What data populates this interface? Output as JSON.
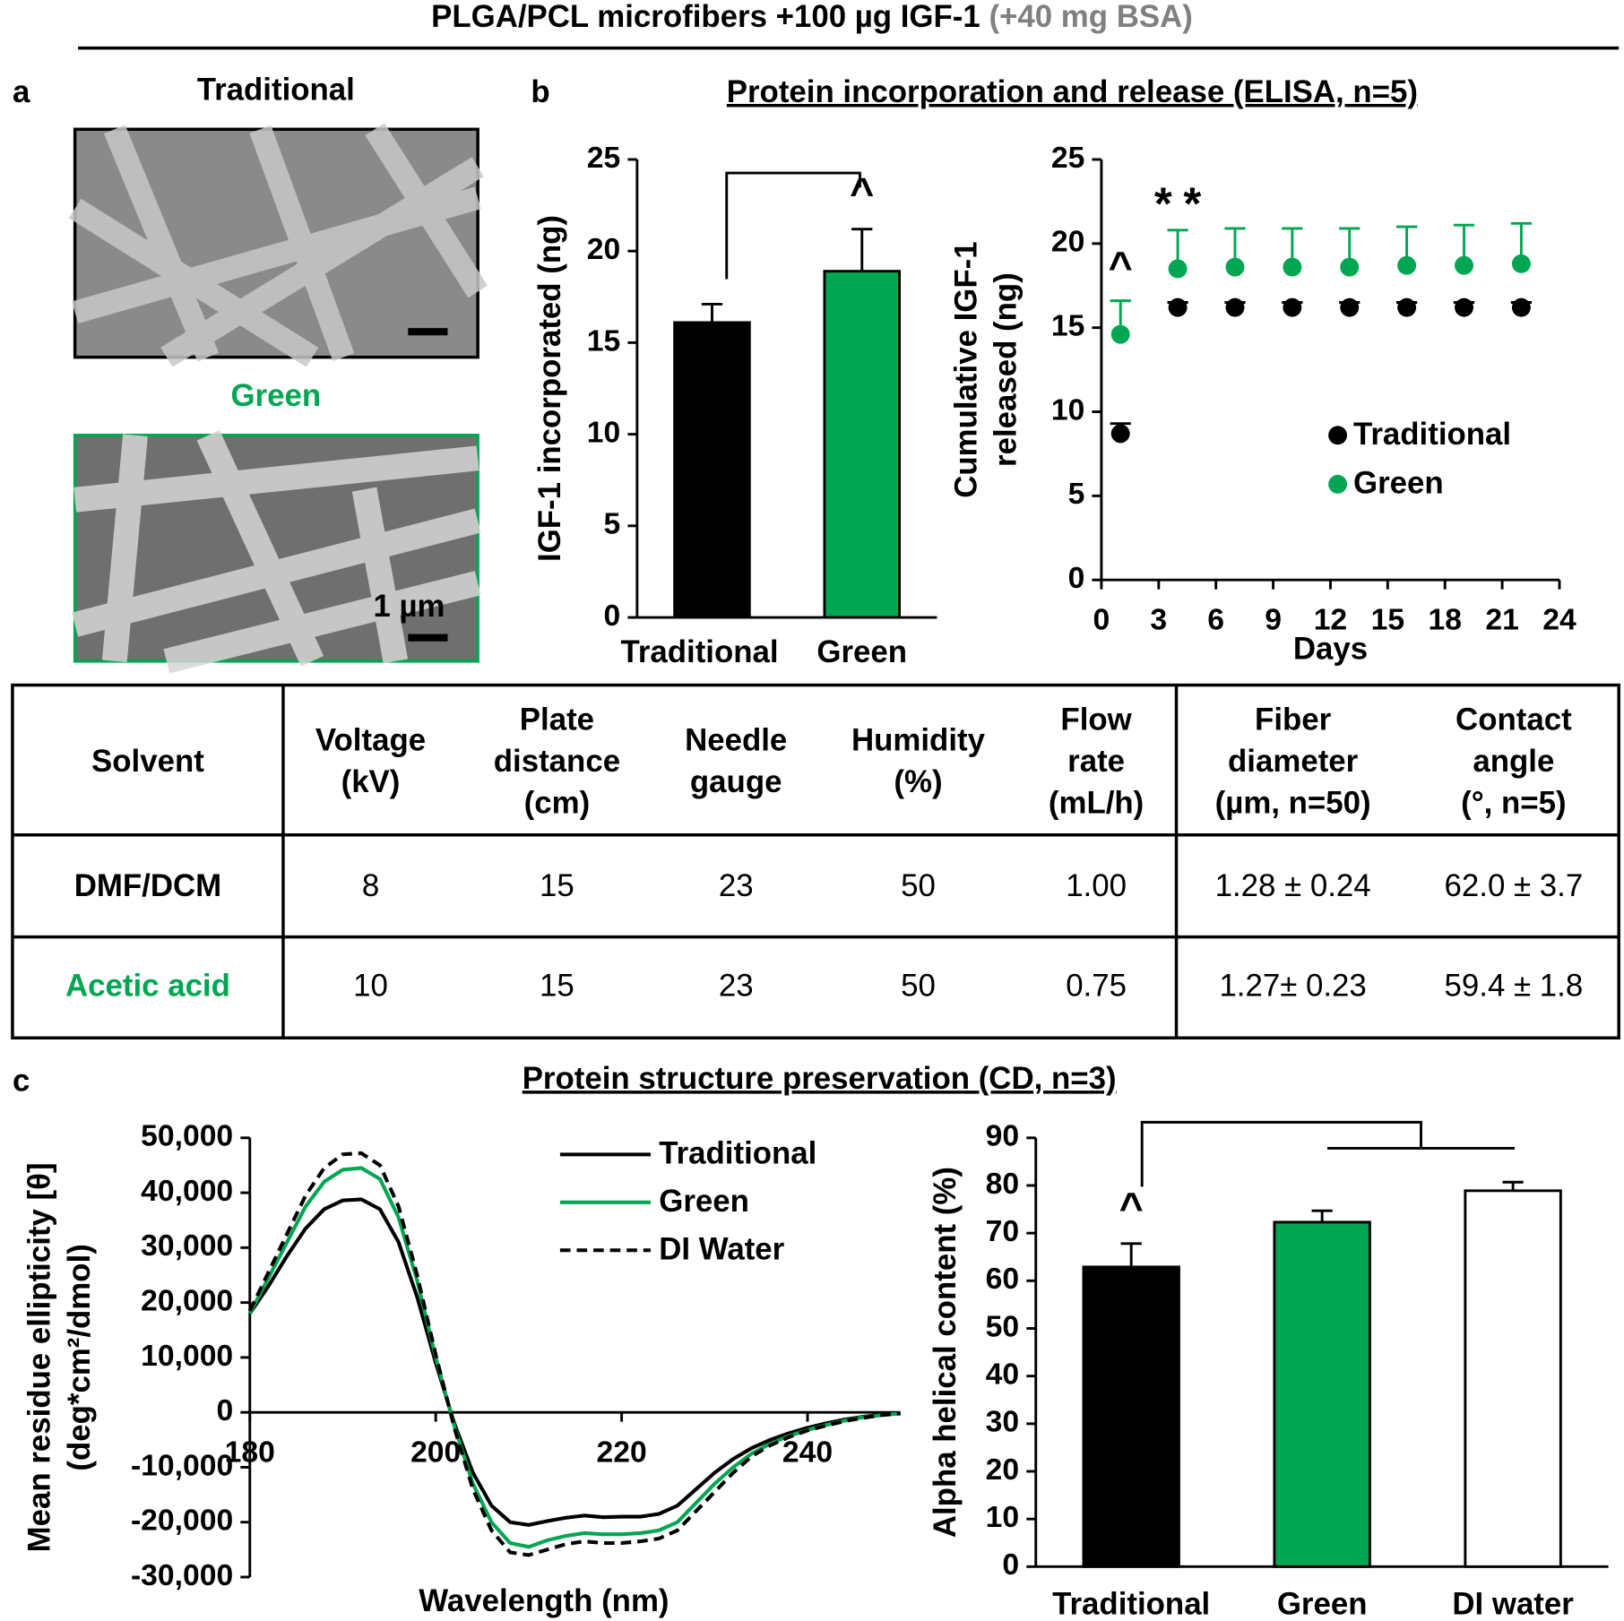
{
  "figure": {
    "title": "PLGA/PCL microfibers +100 µg IGF-1",
    "title_note": "(+40 mg BSA)",
    "panel_labels": [
      "a",
      "b",
      "c"
    ],
    "image_labels": [
      "Traditional",
      "Green"
    ],
    "scale_bar": "1 µm",
    "section_titles": [
      "Protein incorporation and release (ELISA, n=5)",
      "Protein structure preservation (CD, n=3)"
    ]
  },
  "table": {
    "header": [
      [
        "Solvent"
      ],
      [
        "Voltage",
        "(kV)"
      ],
      [
        "Plate",
        "distance",
        "(cm)"
      ],
      [
        "Needle",
        "gauge"
      ],
      [
        "Humidity",
        "(%)"
      ],
      [
        "Flow",
        "rate",
        "(mL/h)"
      ],
      [
        "Fiber",
        "diameter",
        "(µm, n=50)"
      ],
      [
        "Contact",
        "angle",
        "(°, n=5)"
      ]
    ],
    "rows": [
      [
        "DMF/DCM",
        "8",
        "15",
        "23",
        "50",
        "1.00",
        "1.28 ± 0.24",
        "62.0 ± 3.7"
      ],
      [
        "Acetic acid",
        "10",
        "15",
        "23",
        "50",
        "0.75",
        "1.27± 0.23",
        "59.4 ± 1.8"
      ]
    ]
  },
  "chart_data": [
    {
      "type": "bar",
      "ylabel": [
        "IGF-1 incorporated (ng)"
      ],
      "categories": [
        "Traditional",
        "Green"
      ],
      "values": [
        16.1,
        18.9
      ],
      "errors": [
        1.0,
        2.3
      ],
      "colors": [
        "#000000",
        "#00a651"
      ],
      "ylim": [
        0,
        25
      ],
      "yticks": [
        0,
        5,
        10,
        15,
        20,
        25
      ],
      "annotations": [
        {
          "text": "^",
          "color": "#00a651"
        }
      ]
    },
    {
      "type": "scatter",
      "ylabel": [
        "Cumulative IGF-1",
        "released (ng)"
      ],
      "xlabel": "Days",
      "x": [
        1,
        4,
        7,
        10,
        13,
        16,
        19,
        22
      ],
      "series": [
        {
          "name": "Traditional",
          "color": "#000000",
          "values": [
            8.7,
            16.2,
            16.2,
            16.2,
            16.2,
            16.2,
            16.2,
            16.2
          ],
          "errors": [
            0.6,
            0.3,
            0.3,
            0.3,
            0.3,
            0.3,
            0.3,
            0.3
          ]
        },
        {
          "name": "Green",
          "color": "#00a651",
          "values": [
            14.6,
            18.5,
            18.6,
            18.6,
            18.6,
            18.7,
            18.7,
            18.8
          ],
          "errors": [
            2.0,
            2.3,
            2.3,
            2.3,
            2.3,
            2.3,
            2.4,
            2.4
          ]
        }
      ],
      "xlim": [
        0,
        24
      ],
      "xticks": [
        0,
        3,
        6,
        9,
        12,
        15,
        18,
        21,
        24
      ],
      "ylim": [
        0,
        25
      ],
      "yticks": [
        0,
        5,
        10,
        15,
        20,
        25
      ],
      "annotations": [
        {
          "text": "^",
          "color": "#00a651"
        },
        {
          "text": "*",
          "color": "#000000"
        },
        {
          "text": "*",
          "color": "#00a651"
        }
      ]
    },
    {
      "type": "line",
      "ylabel": [
        "Mean residue ellipticity [θ]",
        "(deg*cm²/dmol)"
      ],
      "xlabel": "Wavelength (nm)",
      "x": [
        180,
        182,
        184,
        186,
        188,
        190,
        192,
        194,
        196,
        198,
        200,
        202,
        204,
        206,
        208,
        210,
        212,
        214,
        216,
        218,
        220,
        222,
        224,
        226,
        228,
        230,
        232,
        234,
        236,
        238,
        240,
        242,
        244,
        246,
        248,
        250
      ],
      "series": [
        {
          "name": "Traditional",
          "color": "#000000",
          "dashed": false,
          "values": [
            18000,
            23000,
            28500,
            33500,
            37000,
            38600,
            38800,
            37000,
            31000,
            21000,
            9000,
            -2000,
            -11000,
            -17000,
            -20000,
            -20500,
            -19800,
            -19200,
            -18800,
            -19100,
            -19000,
            -19000,
            -18500,
            -17000,
            -14000,
            -11000,
            -8500,
            -6500,
            -5000,
            -3800,
            -2800,
            -2000,
            -1300,
            -800,
            -400,
            -200
          ]
        },
        {
          "name": "Green",
          "color": "#00a651",
          "dashed": false,
          "values": [
            18000,
            24500,
            31000,
            37500,
            42000,
            44200,
            44500,
            42500,
            35500,
            24000,
            10000,
            -2500,
            -13000,
            -20000,
            -23800,
            -24500,
            -23300,
            -22500,
            -22000,
            -22200,
            -22200,
            -22000,
            -21500,
            -20000,
            -16500,
            -13000,
            -10000,
            -7500,
            -5700,
            -4300,
            -3200,
            -2300,
            -1500,
            -900,
            -500,
            -200
          ]
        },
        {
          "name": "DI Water",
          "color": "#000000",
          "dashed": true,
          "values": [
            18500,
            25500,
            32500,
            39500,
            44500,
            47000,
            47200,
            45000,
            37500,
            25000,
            10500,
            -2800,
            -14000,
            -21500,
            -25500,
            -26000,
            -25000,
            -24000,
            -23500,
            -23800,
            -23800,
            -23500,
            -23000,
            -21500,
            -18000,
            -14500,
            -11000,
            -8000,
            -6000,
            -4500,
            -3300,
            -2400,
            -1600,
            -1000,
            -500,
            -200
          ]
        }
      ],
      "xlim": [
        180,
        250
      ],
      "xticks": [
        180,
        200,
        220,
        240
      ],
      "ylim": [
        -30000,
        50000
      ],
      "yticks": [
        {
          "value": -30000,
          "label": "-30,000"
        },
        {
          "value": -20000,
          "label": "-20,000"
        },
        {
          "value": -10000,
          "label": "-10,000"
        },
        0,
        {
          "value": 10000,
          "label": "10,000"
        },
        {
          "value": 20000,
          "label": "20,000"
        },
        {
          "value": 30000,
          "label": "30,000"
        },
        {
          "value": 40000,
          "label": "40,000"
        },
        {
          "value": 50000,
          "label": "50,000"
        }
      ]
    },
    {
      "type": "bar",
      "ylabel": [
        "Alpha helical content (%)"
      ],
      "categories": [
        "Traditional",
        "Green",
        "DI water"
      ],
      "values": [
        62.9,
        72.3,
        78.9
      ],
      "errors": [
        4.9,
        2.4,
        1.8
      ],
      "colors": [
        "#000000",
        "#00a651",
        "#ffffff"
      ],
      "ylim": [
        0,
        90
      ],
      "yticks": [
        0,
        10,
        20,
        30,
        40,
        50,
        60,
        70,
        80,
        90
      ],
      "annotations": [
        {
          "text": "^",
          "color": "#000000"
        }
      ]
    }
  ]
}
